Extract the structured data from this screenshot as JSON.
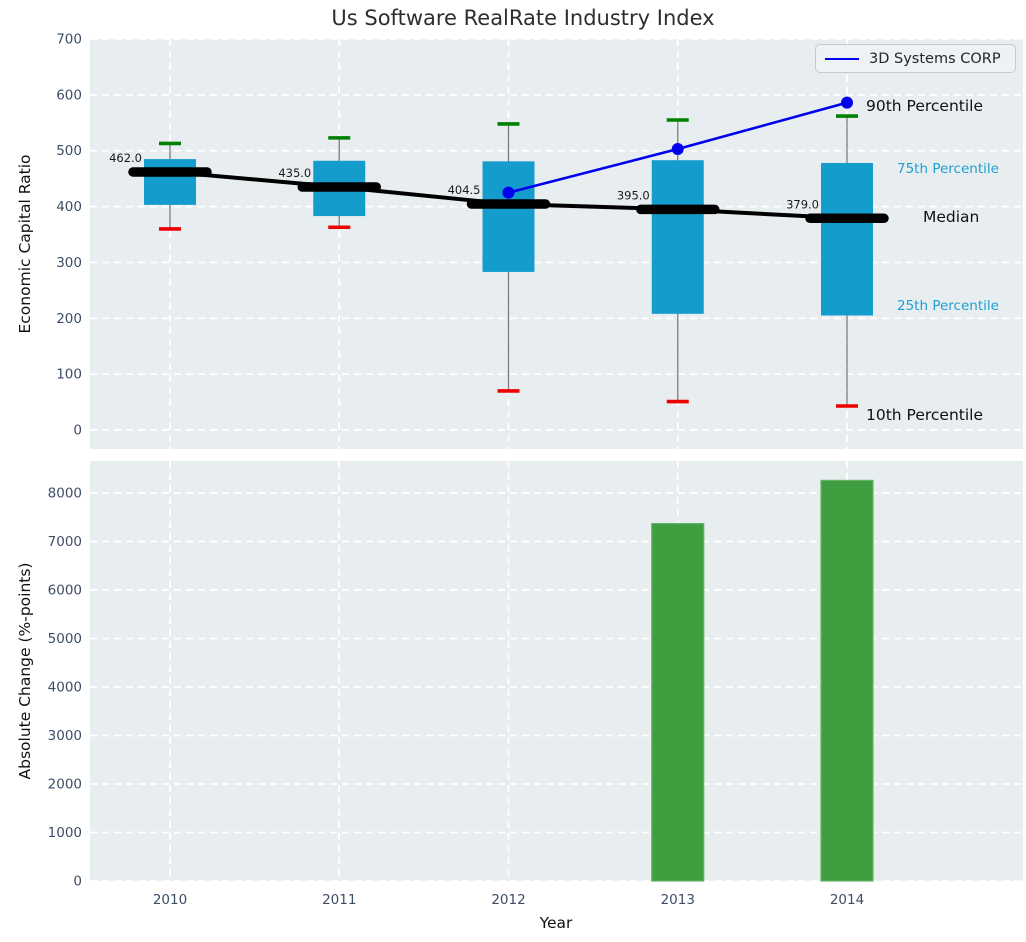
{
  "title": "Us Software RealRate Industry Index",
  "legend": {
    "label": "3D Systems CORP"
  },
  "axis_labels": {
    "top_y": "Economic Capital Ratio",
    "bottom_y": "Absolute Change (%-points)",
    "x": "Year"
  },
  "annotations": {
    "p90": "90th Percentile",
    "p75": "75th Percentile",
    "median": "Median",
    "p25": "25th Percentile",
    "p10": "10th Percentile"
  },
  "colors": {
    "axes_bg": "#e8eef0",
    "grid": "#ffffff",
    "box_fill": "#149ccd",
    "cap_high": "#008000",
    "cap_low": "#ee0000",
    "whisker": "#7a7a7a",
    "median_line": "#000000",
    "company_line": "#0000ee",
    "bar_fill": "#3e9e40",
    "bar_edge": "#66b368",
    "tick_label": "#3e4d66",
    "annotation_accent": "#1f9fd0",
    "value_label": "#1a1a1a"
  },
  "chart_data": [
    {
      "type": "boxplot-with-line",
      "title": "Us Software RealRate Industry Index",
      "ylabel": "Economic Capital Ratio",
      "ylim": [
        -34,
        700
      ],
      "y_ticks": [
        0,
        100,
        200,
        300,
        400,
        500,
        600,
        700
      ],
      "categories": [
        2010,
        2011,
        2012,
        2013,
        2014
      ],
      "grid": true,
      "boxes": [
        {
          "year": 2010,
          "p10": 360,
          "p25": 403,
          "median": 462.0,
          "p75": 485,
          "p90": 513,
          "median_label": "462.0"
        },
        {
          "year": 2011,
          "p10": 363,
          "p25": 383,
          "median": 435.0,
          "p75": 482,
          "p90": 523,
          "median_label": "435.0"
        },
        {
          "year": 2012,
          "p10": 70,
          "p25": 283,
          "median": 404.5,
          "p75": 481,
          "p90": 548,
          "median_label": "404.5"
        },
        {
          "year": 2013,
          "p10": 51,
          "p25": 208,
          "median": 395.0,
          "p75": 483,
          "p90": 555,
          "median_label": "395.0"
        },
        {
          "year": 2014,
          "p10": 43,
          "p25": 205,
          "median": 379.0,
          "p75": 478,
          "p90": 562,
          "median_label": "379.0"
        }
      ],
      "series": [
        {
          "name": "3D Systems CORP",
          "x": [
            2012,
            2013,
            2014
          ],
          "values": [
            425,
            503,
            586
          ]
        }
      ],
      "legend_position": "upper right"
    },
    {
      "type": "bar",
      "ylabel": "Absolute Change (%-points)",
      "xlabel": "Year",
      "ylim": [
        0,
        8660
      ],
      "y_ticks": [
        0,
        1000,
        2000,
        3000,
        4000,
        5000,
        6000,
        7000,
        8000
      ],
      "categories": [
        2010,
        2011,
        2012,
        2013,
        2014
      ],
      "values": [
        null,
        null,
        null,
        7370,
        8260
      ],
      "grid": true
    }
  ]
}
